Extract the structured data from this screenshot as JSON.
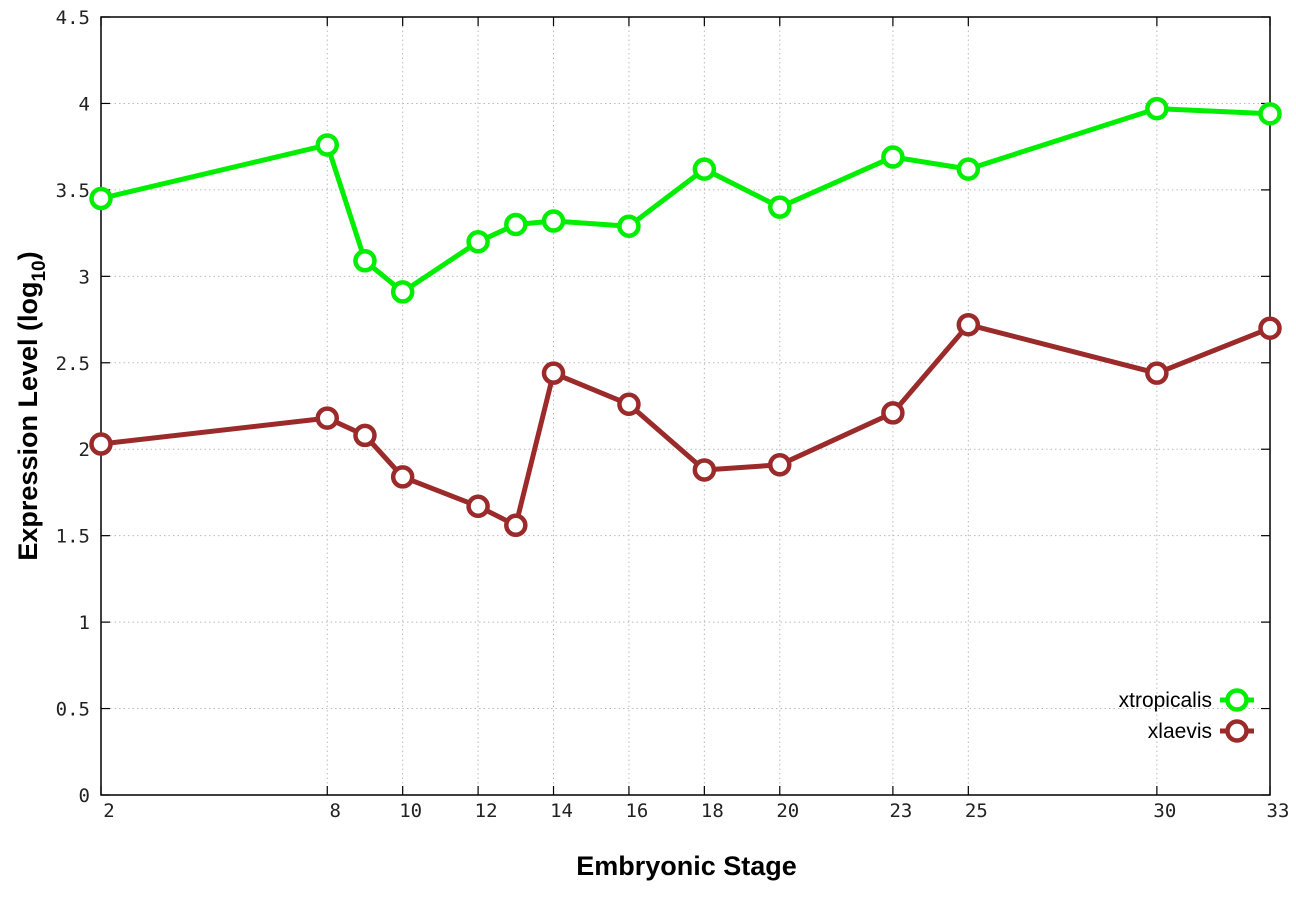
{
  "chart_data": {
    "type": "line",
    "xlabel": "Embryonic Stage",
    "ylabel_main": "Expression Level (log",
    "ylabel_sub": "10",
    "ylabel_close": ")",
    "xlim": [
      2,
      33
    ],
    "ylim": [
      0,
      4.5
    ],
    "x_ticks": [
      2,
      8,
      10,
      12,
      14,
      16,
      18,
      20,
      23,
      25,
      30,
      33
    ],
    "x_tick_labels": [
      "2",
      "8",
      "10",
      "12",
      "14",
      "16",
      "18",
      "20",
      "23",
      "25",
      "30",
      "33"
    ],
    "y_ticks": [
      0,
      0.5,
      1,
      1.5,
      2,
      2.5,
      3,
      3.5,
      4,
      4.5
    ],
    "y_tick_labels": [
      "0",
      "0.5",
      "1",
      "1.5",
      "2",
      "2.5",
      "3",
      "3.5",
      "4",
      "4.5"
    ],
    "grid": true,
    "legend_position": "bottom-right",
    "series": [
      {
        "name": "xtropicalis",
        "color": "#00ee00",
        "x": [
          2,
          8,
          9,
          10,
          12,
          13,
          14,
          16,
          18,
          20,
          23,
          25,
          30,
          33
        ],
        "y": [
          3.45,
          3.76,
          3.09,
          2.91,
          3.2,
          3.3,
          3.32,
          3.29,
          3.62,
          3.4,
          3.69,
          3.62,
          3.97,
          3.94
        ]
      },
      {
        "name": "xlaevis",
        "color": "#9b2a2a",
        "x": [
          2,
          8,
          9,
          10,
          12,
          13,
          14,
          16,
          18,
          20,
          23,
          25,
          30,
          33
        ],
        "y": [
          2.03,
          2.18,
          2.08,
          1.84,
          1.67,
          1.56,
          2.44,
          2.26,
          1.88,
          1.91,
          2.21,
          2.72,
          2.44,
          2.7
        ]
      }
    ]
  }
}
